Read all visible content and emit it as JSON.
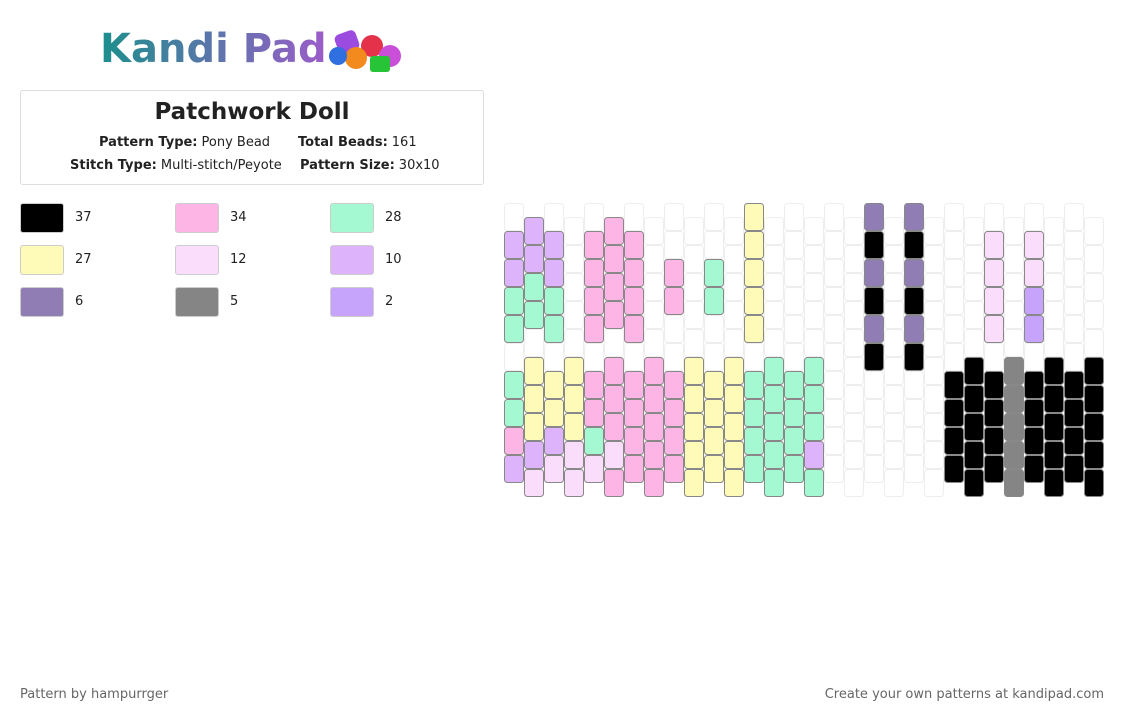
{
  "header": {
    "logo": "Kandi Pad"
  },
  "pattern": {
    "title": "Patchwork Doll",
    "info": [
      {
        "label": "Pattern Type:",
        "value": "Pony Bead"
      },
      {
        "label": "Total Beads:",
        "value": "161"
      },
      {
        "label": "Stitch Type:",
        "value": "Multi-stitch/Peyote"
      },
      {
        "label": "Pattern Size:",
        "value": "30x10"
      }
    ]
  },
  "legend": [
    {
      "color": "#000000",
      "count": 37
    },
    {
      "color": "#fdb5e6",
      "count": 34
    },
    {
      "color": "#a5f9d2",
      "count": 28
    },
    {
      "color": "#fdfbb7",
      "count": 27
    },
    {
      "color": "#fadcfb",
      "count": 12
    },
    {
      "color": "#ddb4fb",
      "count": 10
    },
    {
      "color": "#8f7db4",
      "count": 6
    },
    {
      "color": "#858585",
      "count": 5
    },
    {
      "color": "#c6a4fb",
      "count": 2
    }
  ],
  "footer": {
    "left": "Pattern by hampurrger",
    "right": "Create your own patterns at kandipad.com"
  }
}
